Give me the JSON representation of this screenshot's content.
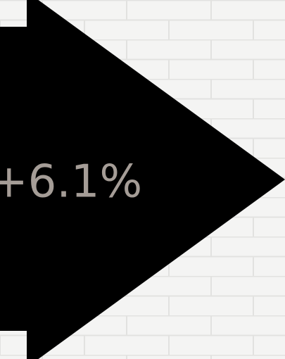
{
  "label": "+6.1%"
}
